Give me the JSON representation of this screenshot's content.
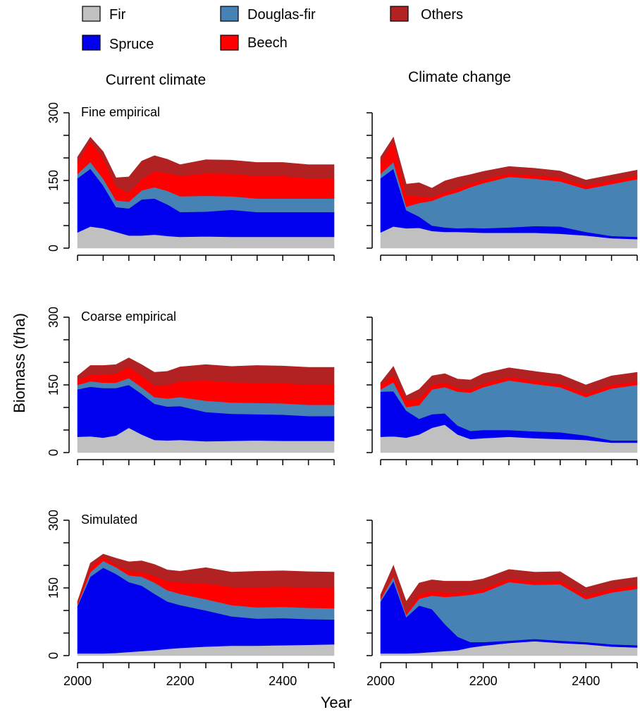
{
  "colors": {
    "Fir": "#c0c0c0",
    "Spruce": "#0000ee",
    "Douglas-fir": "#4682b4",
    "Beech": "#ff0000",
    "Others": "#b22222"
  },
  "legend": [
    "Fir",
    "Douglas-fir",
    "Others",
    "Spruce",
    "Beech"
  ],
  "column_titles": [
    "Current climate",
    "Climate change"
  ],
  "axis": {
    "xlabel": "Year",
    "ylabel": "Biomass (t/ha)",
    "xticks": [
      "2000",
      "2200",
      "2400"
    ],
    "yticks": [
      "0",
      "150",
      "300"
    ]
  },
  "chart_data": [
    {
      "type": "area",
      "stacked": true,
      "row_label": "Fine empirical",
      "column": "Current climate",
      "ylim": [
        0,
        300
      ],
      "x": [
        2000,
        2025,
        2050,
        2075,
        2100,
        2125,
        2150,
        2175,
        2200,
        2250,
        2300,
        2350,
        2400,
        2450,
        2500
      ],
      "series": [
        {
          "name": "Fir",
          "values": [
            35,
            48,
            44,
            36,
            28,
            28,
            30,
            27,
            25,
            26,
            25,
            25,
            25,
            25,
            25
          ]
        },
        {
          "name": "Spruce",
          "values": [
            120,
            128,
            95,
            55,
            60,
            80,
            80,
            70,
            55,
            55,
            60,
            55,
            55,
            55,
            55
          ]
        },
        {
          "name": "Douglas-fir",
          "values": [
            10,
            15,
            15,
            15,
            15,
            20,
            25,
            30,
            35,
            35,
            30,
            30,
            30,
            30,
            30
          ]
        },
        {
          "name": "Beech",
          "values": [
            25,
            45,
            45,
            30,
            20,
            25,
            35,
            40,
            45,
            50,
            50,
            50,
            50,
            45,
            45
          ]
        },
        {
          "name": "Others",
          "values": [
            12,
            10,
            15,
            20,
            35,
            40,
            35,
            30,
            25,
            30,
            30,
            30,
            30,
            30,
            30
          ]
        }
      ]
    },
    {
      "type": "area",
      "stacked": true,
      "row_label": "",
      "column": "Climate change",
      "ylim": [
        0,
        300
      ],
      "x": [
        2000,
        2025,
        2050,
        2075,
        2100,
        2125,
        2150,
        2175,
        2200,
        2250,
        2300,
        2350,
        2400,
        2450,
        2500
      ],
      "series": [
        {
          "name": "Fir",
          "values": [
            35,
            48,
            44,
            45,
            38,
            36,
            36,
            35,
            34,
            34,
            34,
            32,
            28,
            22,
            20
          ]
        },
        {
          "name": "Spruce",
          "values": [
            120,
            128,
            40,
            25,
            12,
            10,
            8,
            10,
            10,
            12,
            15,
            16,
            8,
            5,
            5
          ]
        },
        {
          "name": "Douglas-fir",
          "values": [
            10,
            15,
            8,
            30,
            55,
            70,
            80,
            90,
            100,
            112,
            105,
            100,
            95,
            115,
            128
          ]
        },
        {
          "name": "Beech",
          "values": [
            25,
            45,
            25,
            15,
            8,
            8,
            8,
            8,
            8,
            8,
            8,
            8,
            8,
            8,
            8
          ]
        },
        {
          "name": "Others",
          "values": [
            12,
            10,
            25,
            30,
            20,
            25,
            25,
            20,
            18,
            15,
            15,
            15,
            12,
            12,
            12
          ]
        }
      ]
    },
    {
      "type": "area",
      "stacked": true,
      "row_label": "Coarse empirical",
      "column": "Current climate",
      "ylim": [
        0,
        300
      ],
      "x": [
        2000,
        2025,
        2050,
        2075,
        2100,
        2125,
        2150,
        2175,
        2200,
        2250,
        2300,
        2350,
        2400,
        2450,
        2500
      ],
      "series": [
        {
          "name": "Fir",
          "values": [
            35,
            36,
            33,
            38,
            55,
            40,
            28,
            27,
            28,
            25,
            26,
            27,
            26,
            26,
            26
          ]
        },
        {
          "name": "Spruce",
          "values": [
            105,
            110,
            110,
            105,
            95,
            90,
            80,
            75,
            75,
            65,
            60,
            58,
            58,
            55,
            55
          ]
        },
        {
          "name": "Douglas-fir",
          "values": [
            10,
            12,
            12,
            12,
            15,
            15,
            15,
            18,
            20,
            25,
            25,
            25,
            25,
            25,
            25
          ]
        },
        {
          "name": "Beech",
          "values": [
            10,
            15,
            18,
            20,
            25,
            25,
            25,
            30,
            35,
            45,
            45,
            45,
            45,
            45,
            45
          ]
        },
        {
          "name": "Others",
          "values": [
            10,
            20,
            20,
            20,
            20,
            25,
            30,
            30,
            32,
            35,
            35,
            38,
            38,
            38,
            38
          ]
        }
      ]
    },
    {
      "type": "area",
      "stacked": true,
      "row_label": "",
      "column": "Climate change",
      "ylim": [
        0,
        300
      ],
      "x": [
        2000,
        2025,
        2050,
        2075,
        2100,
        2125,
        2150,
        2175,
        2200,
        2250,
        2300,
        2350,
        2400,
        2450,
        2500
      ],
      "series": [
        {
          "name": "Fir",
          "values": [
            35,
            36,
            33,
            40,
            55,
            62,
            40,
            30,
            32,
            35,
            32,
            30,
            28,
            22,
            22
          ]
        },
        {
          "name": "Spruce",
          "values": [
            100,
            100,
            60,
            35,
            30,
            25,
            20,
            18,
            18,
            15,
            15,
            15,
            10,
            5,
            5
          ]
        },
        {
          "name": "Douglas-fir",
          "values": [
            5,
            20,
            8,
            30,
            55,
            58,
            75,
            85,
            95,
            110,
            105,
            100,
            85,
            115,
            123
          ]
        },
        {
          "name": "Beech",
          "values": [
            10,
            15,
            15,
            15,
            10,
            10,
            8,
            8,
            8,
            8,
            8,
            8,
            8,
            8,
            8
          ]
        },
        {
          "name": "Others",
          "values": [
            5,
            20,
            10,
            20,
            20,
            20,
            20,
            20,
            22,
            20,
            20,
            20,
            19,
            20,
            20
          ]
        }
      ]
    },
    {
      "type": "area",
      "stacked": true,
      "row_label": "Simulated",
      "column": "Current climate",
      "ylim": [
        0,
        300
      ],
      "x": [
        2000,
        2025,
        2050,
        2075,
        2100,
        2125,
        2150,
        2175,
        2200,
        2250,
        2300,
        2350,
        2400,
        2450,
        2500
      ],
      "series": [
        {
          "name": "Fir",
          "values": [
            5,
            5,
            5,
            6,
            8,
            10,
            12,
            15,
            17,
            20,
            22,
            22,
            23,
            24,
            25
          ]
        },
        {
          "name": "Spruce",
          "values": [
            105,
            170,
            190,
            175,
            155,
            145,
            125,
            105,
            95,
            80,
            65,
            60,
            60,
            57,
            55
          ]
        },
        {
          "name": "Douglas-fir",
          "values": [
            3,
            10,
            15,
            15,
            15,
            20,
            25,
            25,
            25,
            25,
            25,
            25,
            25,
            25,
            25
          ]
        },
        {
          "name": "Beech",
          "values": [
            5,
            10,
            10,
            5,
            10,
            10,
            15,
            20,
            25,
            35,
            40,
            45,
            45,
            45,
            45
          ]
        },
        {
          "name": "Others",
          "values": [
            2,
            10,
            5,
            15,
            20,
            25,
            25,
            25,
            25,
            35,
            33,
            35,
            35,
            35,
            35
          ]
        }
      ]
    },
    {
      "type": "area",
      "stacked": true,
      "row_label": "",
      "column": "Climate change",
      "ylim": [
        0,
        300
      ],
      "x": [
        2000,
        2025,
        2050,
        2075,
        2100,
        2125,
        2150,
        2175,
        2200,
        2250,
        2300,
        2350,
        2400,
        2450,
        2500
      ],
      "series": [
        {
          "name": "Fir",
          "values": [
            5,
            5,
            5,
            6,
            8,
            10,
            12,
            18,
            22,
            28,
            32,
            28,
            25,
            20,
            18
          ]
        },
        {
          "name": "Spruce",
          "values": [
            115,
            160,
            80,
            105,
            95,
            60,
            30,
            12,
            8,
            5,
            5,
            5,
            5,
            5,
            5
          ]
        },
        {
          "name": "Douglas-fir",
          "values": [
            5,
            10,
            5,
            15,
            30,
            60,
            90,
            105,
            110,
            130,
            120,
            125,
            95,
            115,
            125
          ]
        },
        {
          "name": "Beech",
          "values": [
            5,
            5,
            5,
            10,
            10,
            10,
            8,
            8,
            8,
            8,
            8,
            8,
            8,
            8,
            8
          ]
        },
        {
          "name": "Others",
          "values": [
            5,
            20,
            25,
            25,
            25,
            25,
            25,
            22,
            22,
            20,
            20,
            20,
            18,
            18,
            18
          ]
        }
      ]
    }
  ]
}
